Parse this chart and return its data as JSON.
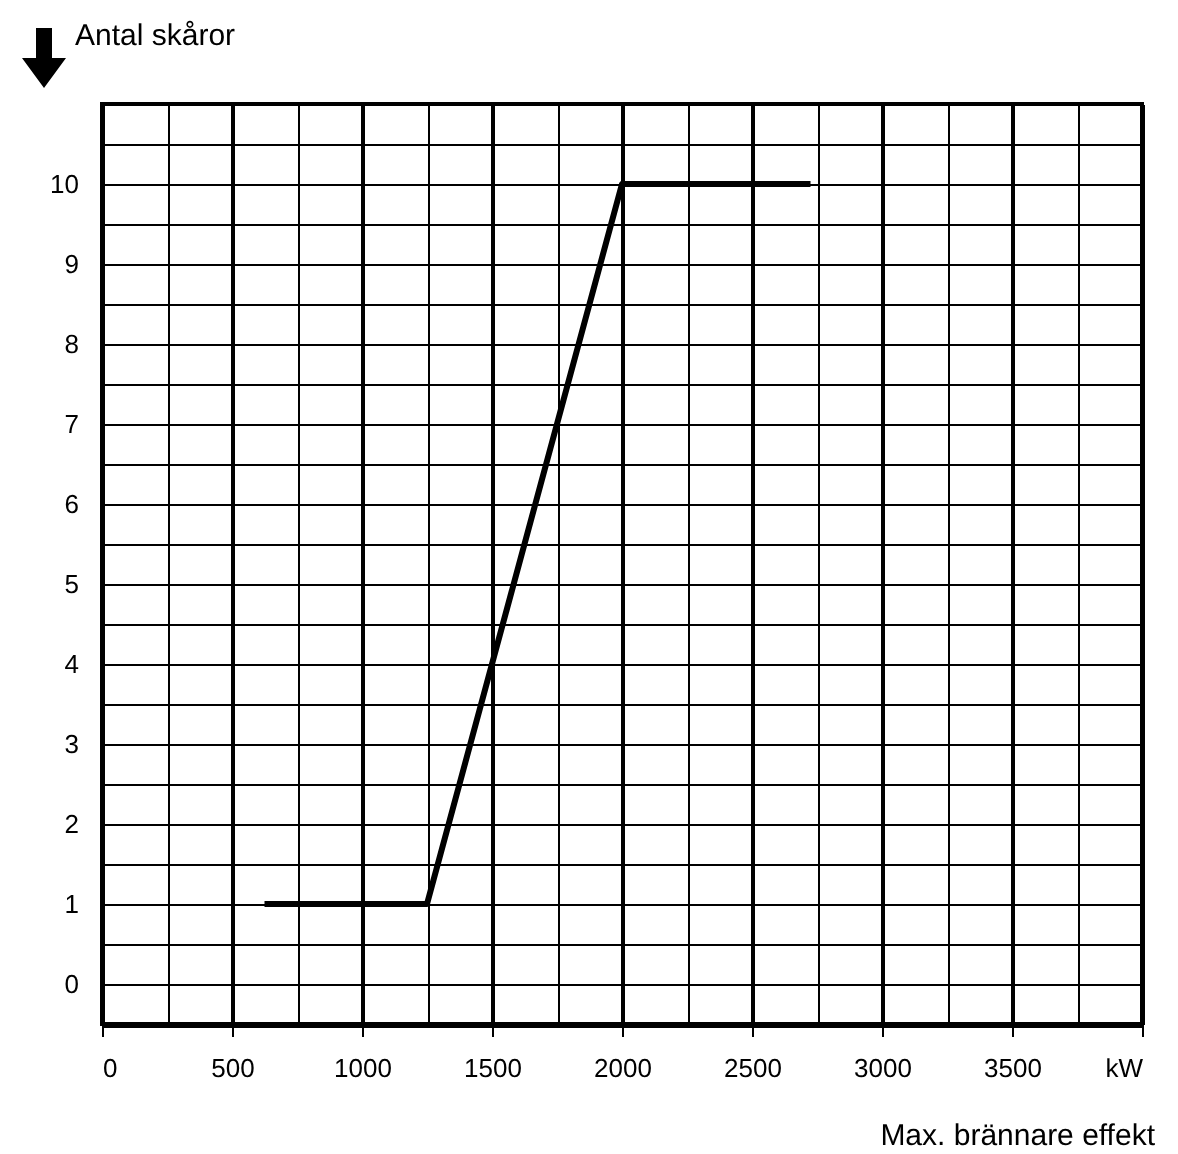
{
  "chart_data": {
    "type": "line",
    "xlabel": "Max. brännare effekt",
    "ylabel": "Antal skåror",
    "x": [
      625,
      1250,
      2000,
      2725
    ],
    "series": [
      {
        "color": "#000000",
        "values": [
          1,
          1,
          10,
          10
        ]
      }
    ],
    "xlim": [
      0,
      4000
    ],
    "xticks": [
      0,
      {
        "value": 250,
        "label": null
      },
      500,
      {
        "value": 750,
        "label": null
      },
      1000,
      {
        "value": 1250,
        "label": null
      },
      1500,
      {
        "value": 1750,
        "label": null
      },
      2000,
      {
        "value": 2250,
        "label": null
      },
      2500,
      {
        "value": 2750,
        "label": null
      },
      3000,
      {
        "value": 3250,
        "label": null
      },
      3500,
      {
        "value": 3750,
        "label": null
      },
      {
        "value": 4000,
        "label": "kW"
      }
    ],
    "ylim": [
      -0.5,
      11
    ],
    "yticks": [
      {
        "value": -0.5,
        "label": null
      },
      0,
      {
        "value": 0.5,
        "label": null
      },
      1,
      {
        "value": 1.5,
        "label": null
      },
      2,
      {
        "value": 2.5,
        "label": null
      },
      3,
      {
        "value": 3.5,
        "label": null
      },
      4,
      {
        "value": 4.5,
        "label": null
      },
      5,
      {
        "value": 5.5,
        "label": null
      },
      6,
      {
        "value": 6.5,
        "label": null
      },
      7,
      {
        "value": 7.5,
        "label": null
      },
      8,
      {
        "value": 8.5,
        "label": null
      },
      9,
      {
        "value": 9.5,
        "label": null
      },
      10,
      {
        "value": 10.5,
        "label": null
      },
      {
        "value": 11,
        "label": null
      }
    ],
    "grid": true,
    "line_style": "solid"
  }
}
